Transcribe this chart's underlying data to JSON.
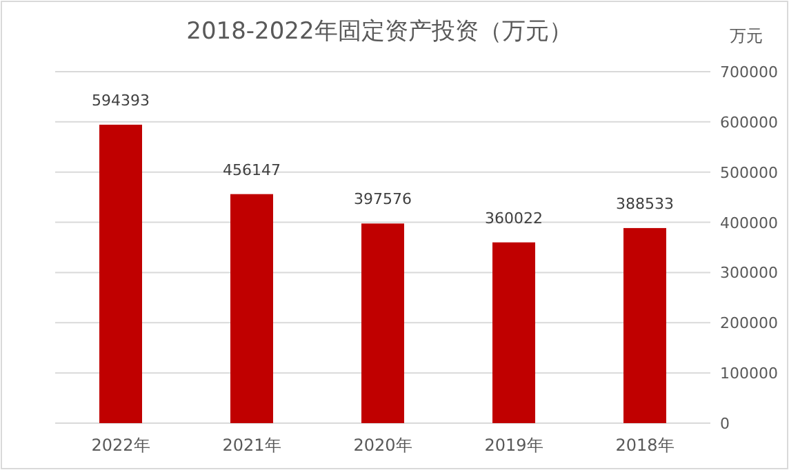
{
  "chart_data": {
    "type": "bar",
    "title": "2018-2022年固定资产投资（万元）",
    "ylabel": "万元",
    "categories": [
      "2022年",
      "2021年",
      "2020年",
      "2019年",
      "2018年"
    ],
    "values": [
      594393,
      456147,
      397576,
      360022,
      388533
    ],
    "color": "#c00000",
    "ylim": [
      0,
      700000
    ],
    "yticks": [
      0,
      100000,
      200000,
      300000,
      400000,
      500000,
      600000,
      700000
    ],
    "grid": "y",
    "data_labels": true
  }
}
